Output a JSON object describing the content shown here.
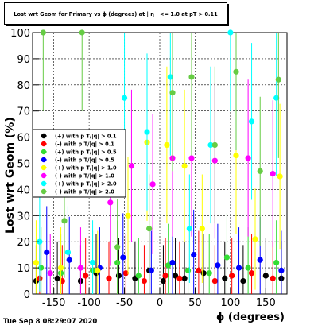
{
  "title": "Lost wrt Geom for Primary vs ϕ (degrees) at | η | <= 1.0 at pT > 0.11",
  "timestamp": "Tue Sep  8 08:29:07 2020",
  "chart_data": {
    "type": "scatter",
    "title": "Lost wrt Geom for Primary vs ϕ (degrees) at | η | <= 1.0 at pT > 0.11",
    "xlabel": "ϕ (degrees)",
    "ylabel": "Lost  wrt  Geom (%)",
    "xlim": [
      -180,
      180
    ],
    "ylim": [
      0,
      100
    ],
    "x_ticks": [
      -150,
      -100,
      -50,
      0,
      50,
      100,
      150
    ],
    "y_ticks": [
      0,
      10,
      20,
      30,
      40,
      50,
      60,
      70,
      80,
      90,
      100
    ],
    "grid": true,
    "legend_position": "left-middle",
    "series": [
      {
        "name": "(+) with p T/|q| > 0.1",
        "color": "#000000",
        "marker": "circle",
        "x": [
          -175,
          -145,
          -112,
          -90,
          -58,
          -35,
          -15,
          5,
          22,
          35,
          62,
          92,
          118,
          150,
          172
        ],
        "y": [
          5,
          6,
          5,
          8,
          7,
          6,
          9,
          5,
          7,
          6,
          8,
          6,
          5,
          7,
          6
        ]
      },
      {
        "name": "(-) with p T/|q| > 0.1",
        "color": "#ff0000",
        "marker": "circle",
        "x": [
          -170,
          -138,
          -105,
          -72,
          -48,
          -22,
          8,
          28,
          55,
          78,
          102,
          130,
          160
        ],
        "y": [
          6,
          5,
          7,
          6,
          8,
          5,
          7,
          6,
          9,
          5,
          7,
          8,
          6
        ]
      },
      {
        "name": "(+) with p T/|q| > 0.5",
        "color": "#33dd33",
        "marker": "circle",
        "x": [
          -168,
          -140,
          -95,
          -60,
          -30,
          12,
          40,
          70,
          95,
          125,
          165
        ],
        "y": [
          10,
          8,
          9,
          12,
          7,
          11,
          9,
          8,
          14,
          10,
          12
        ]
      },
      {
        "name": "(-) with p T/|q| > 0.5",
        "color": "#0000ff",
        "marker": "circle",
        "x": [
          -160,
          -128,
          -85,
          -52,
          -12,
          18,
          48,
          82,
          112,
          142,
          172
        ],
        "y": [
          16,
          13,
          10,
          14,
          9,
          12,
          15,
          11,
          10,
          13,
          9
        ]
      },
      {
        "name": "(+) with p T/|q| > 1.0",
        "color": "#ffff00",
        "marker": "circle",
        "x": [
          -175,
          -140,
          -88,
          -45,
          -18,
          10,
          35,
          60,
          108,
          135,
          170
        ],
        "y": [
          12,
          10,
          9,
          30,
          58,
          57,
          49,
          25,
          53,
          21,
          45
        ]
      },
      {
        "name": "(-) with p T/|q| > 1.0",
        "color": "#ff00ff",
        "marker": "circle",
        "x": [
          -155,
          -112,
          -70,
          -40,
          -10,
          18,
          45,
          78,
          125,
          160
        ],
        "y": [
          8,
          10,
          35,
          49,
          42,
          52,
          52,
          51,
          52,
          46
        ]
      },
      {
        "name": "(+) with p T/|q| > 2.0",
        "color": "#00ffff",
        "marker": "circle",
        "x": [
          -170,
          -130,
          -95,
          -50,
          -18,
          15,
          42,
          72,
          100,
          130,
          165
        ],
        "y": [
          20,
          16,
          12,
          75,
          62,
          83,
          25,
          57,
          100,
          66,
          75
        ]
      },
      {
        "name": "(-) with p T/|q| > 2.0",
        "color": "#66cc44",
        "marker": "circle",
        "x": [
          -165,
          -135,
          -110,
          -60,
          -15,
          18,
          45,
          78,
          108,
          142,
          168
        ],
        "y": [
          100,
          28,
          100,
          18,
          25,
          77,
          83,
          57,
          85,
          47,
          82
        ]
      }
    ]
  }
}
